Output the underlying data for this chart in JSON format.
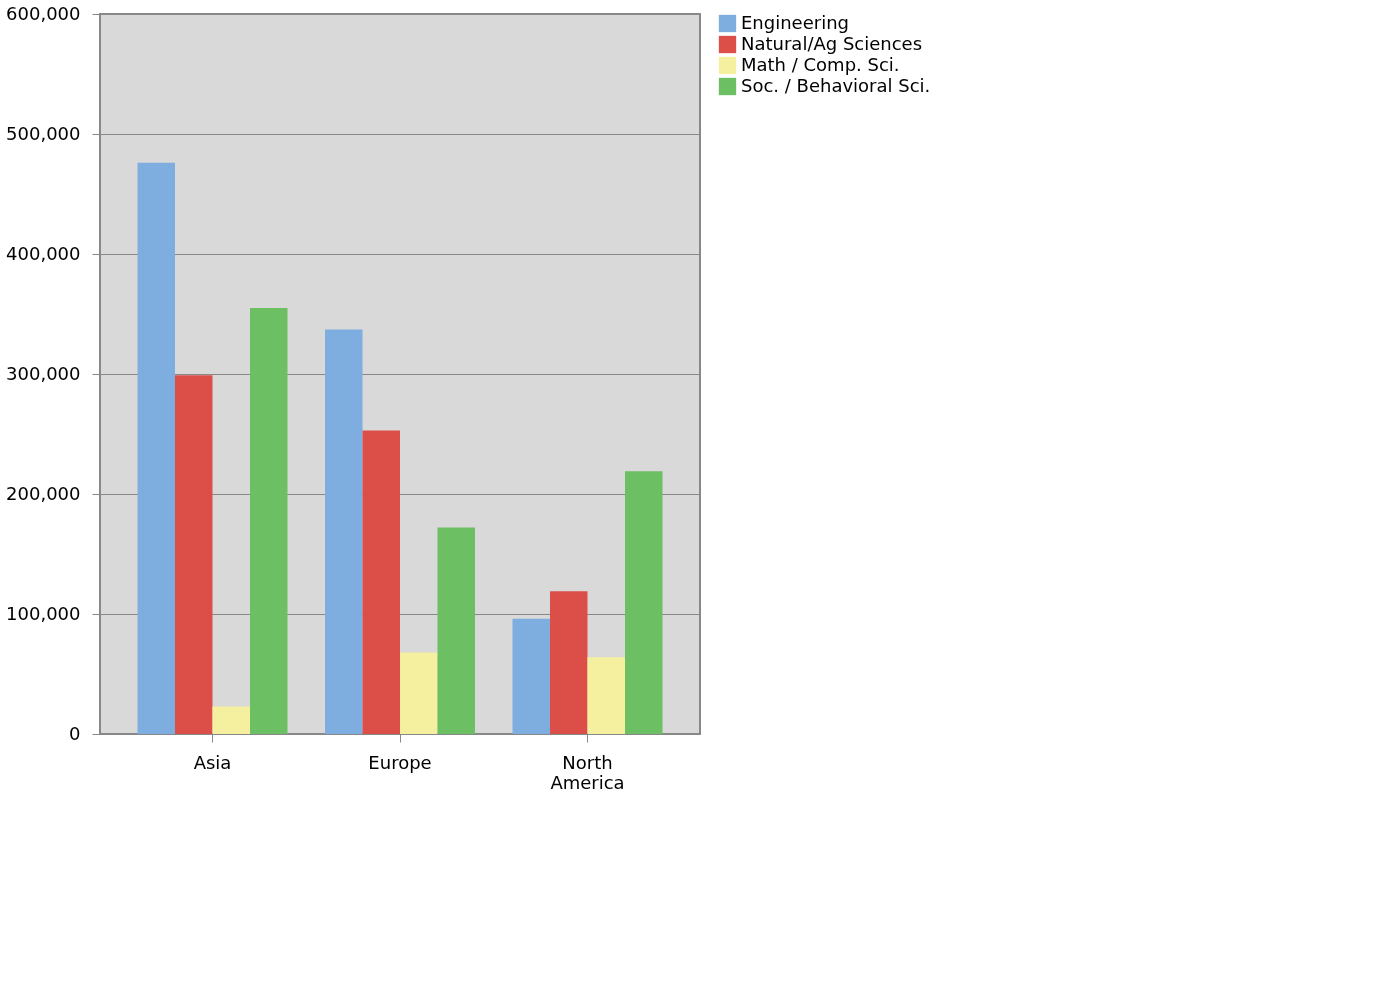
{
  "chart_data": {
    "type": "bar",
    "categories": [
      "Asia",
      "Europe",
      "North America"
    ],
    "series": [
      {
        "name": "Engineering",
        "color": "#7eaee0",
        "values": [
          476000,
          337000,
          96000
        ]
      },
      {
        "name": "Natural/Ag Sciences",
        "color": "#dc4f48",
        "values": [
          299000,
          253000,
          119000
        ]
      },
      {
        "name": "Math / Comp. Sci.",
        "color": "#f5f0a0",
        "values": [
          23000,
          68000,
          64000
        ]
      },
      {
        "name": "Soc. / Behavioral Sci.",
        "color": "#6cbf62",
        "values": [
          355000,
          172000,
          219000
        ]
      }
    ],
    "ylim": [
      0,
      600000
    ],
    "yticks": [
      0,
      {
        "value": 100000,
        "label": "100,000"
      },
      {
        "value": 200000,
        "label": "200,000"
      },
      {
        "value": 300000,
        "label": "300,000"
      },
      {
        "value": 400000,
        "label": "400,000"
      },
      {
        "value": 500000,
        "label": "500,000"
      },
      {
        "value": 600000,
        "label": "600,000"
      }
    ],
    "grid": "y",
    "legend": "right"
  }
}
